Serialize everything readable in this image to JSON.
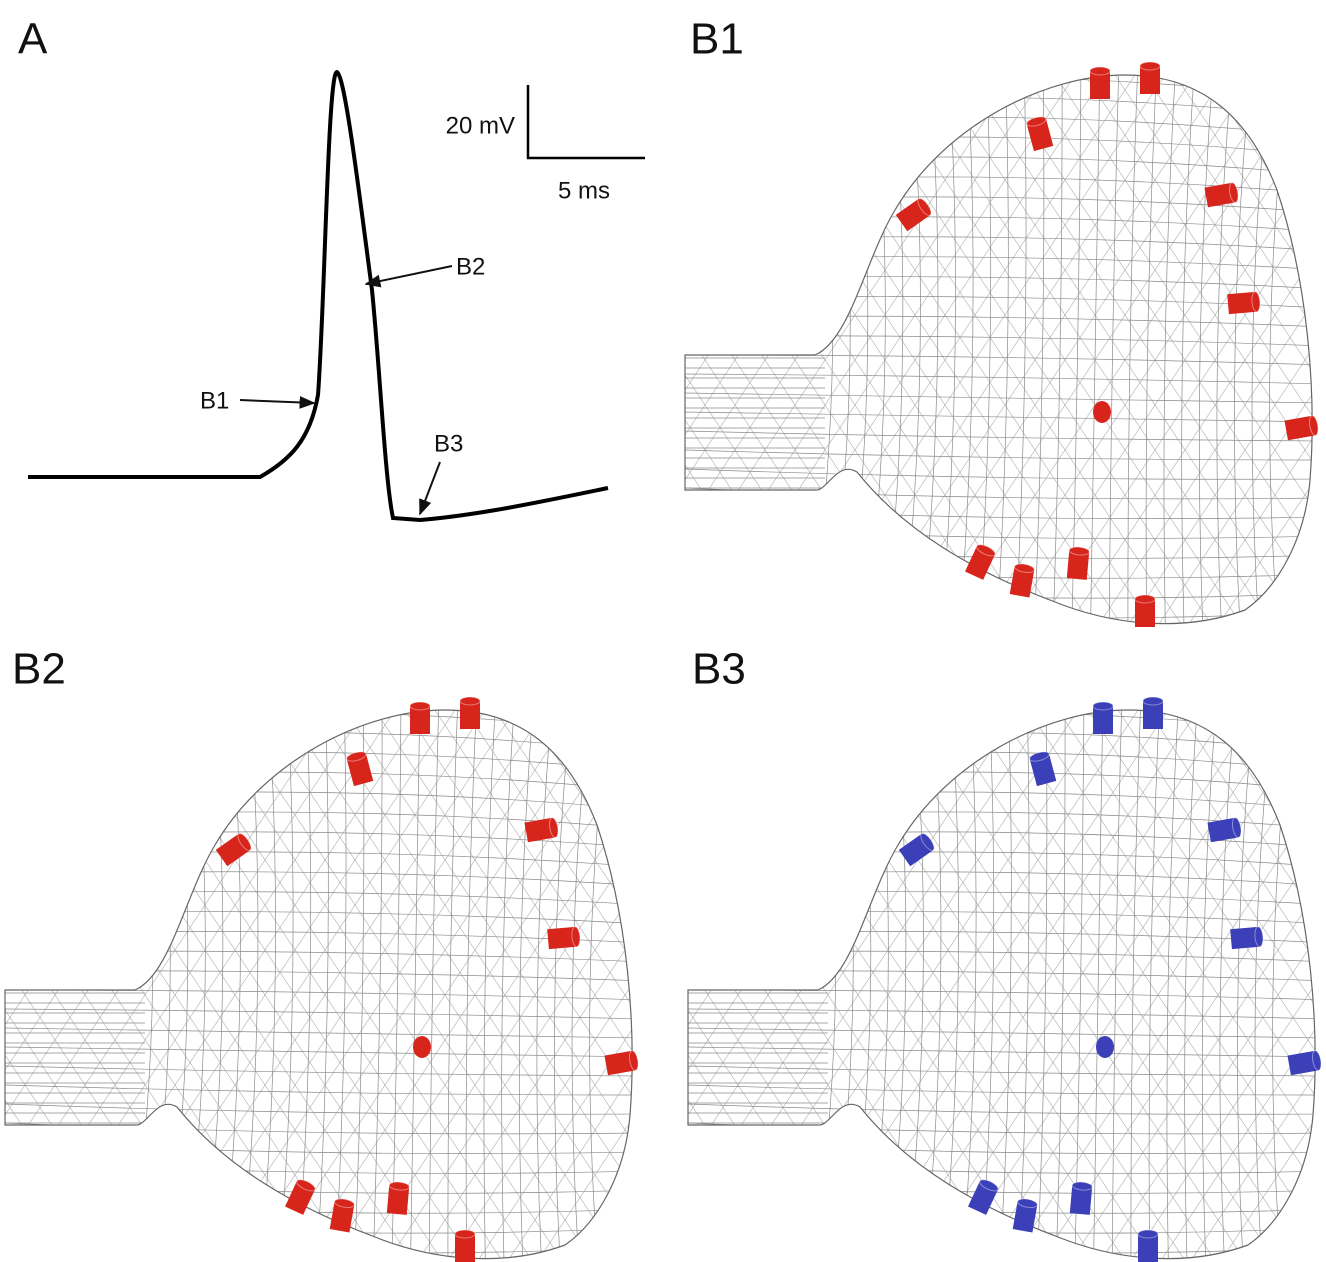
{
  "panels": [
    {
      "label": "A"
    },
    {
      "label": "B1"
    },
    {
      "label": "B2"
    },
    {
      "label": "B3"
    }
  ],
  "trace": {
    "scale_bar": {
      "voltage": "20 mV",
      "time": "5 ms"
    },
    "annotations": [
      "B1",
      "B2",
      "B3"
    ]
  }
}
